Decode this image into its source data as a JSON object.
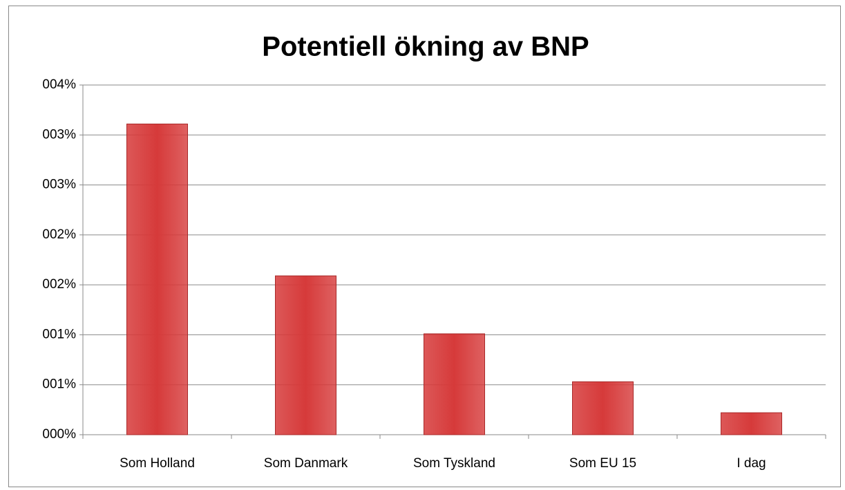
{
  "chart_data": {
    "type": "bar",
    "title": "Potentiell ökning av BNP",
    "categories": [
      "Som Holland",
      "Som Danmark",
      "Som Tyskland",
      "Som EU 15",
      "I dag"
    ],
    "values": [
      3.11,
      1.59,
      1.01,
      0.53,
      0.22
    ],
    "color": "#d63a3a",
    "ylim": [
      0,
      3.5
    ],
    "yticks": [
      {
        "value": 0,
        "label": "000%"
      },
      {
        "value": 0.5,
        "label": "001%"
      },
      {
        "value": 1,
        "label": "001%"
      },
      {
        "value": 1.5,
        "label": "002%"
      },
      {
        "value": 2,
        "label": "002%"
      },
      {
        "value": 2.5,
        "label": "003%"
      },
      {
        "value": 3,
        "label": "003%"
      },
      {
        "value": 3.5,
        "label": "004%"
      }
    ],
    "grid": true
  }
}
